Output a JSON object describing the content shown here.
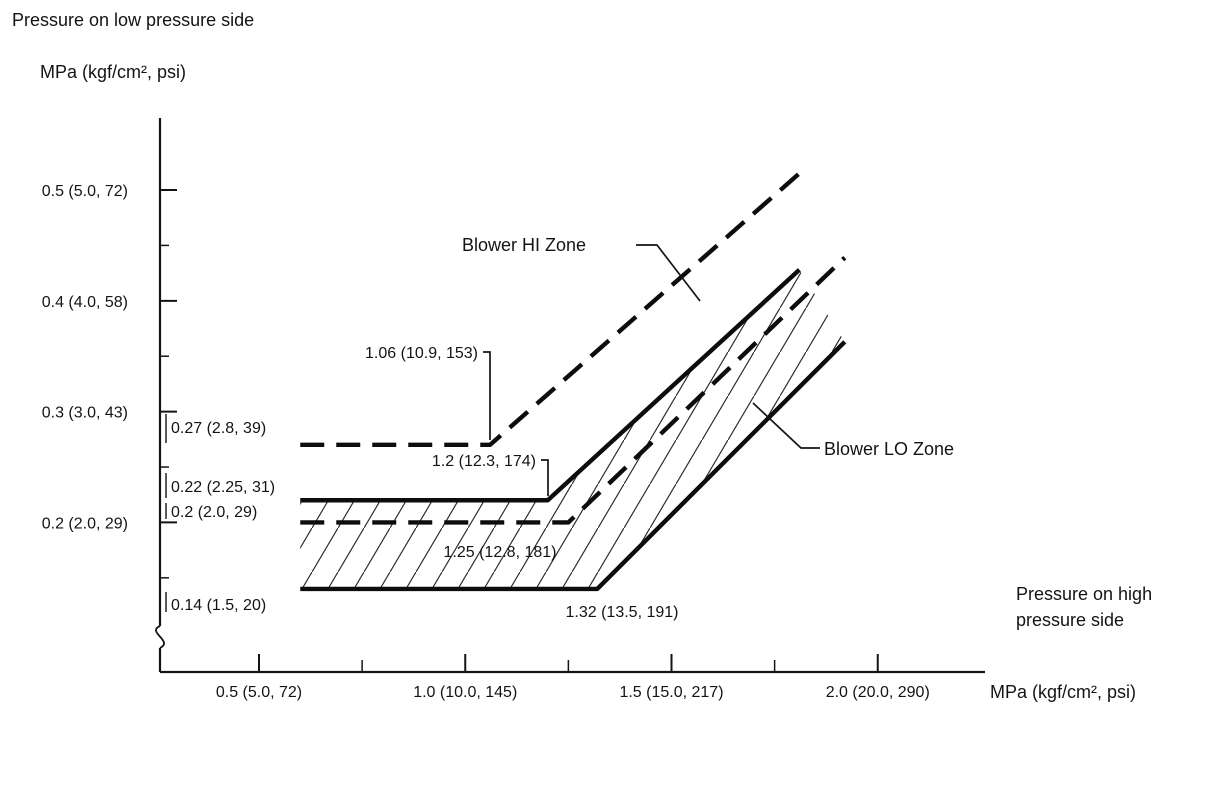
{
  "colors": {
    "line": "#141414",
    "background": "#ffffff"
  },
  "chart_data": {
    "type": "line",
    "title": "Pressure on low pressure side",
    "y_axis": {
      "title": "Pressure on low pressure side",
      "unit": "MPa (kgf/cm², psi)",
      "range": [
        0.065,
        0.565
      ],
      "axis_break": true,
      "ticks": [
        {
          "value": 0.5,
          "label": "0.5 (5.0, 72)"
        },
        {
          "value": 0.4,
          "label": "0.4 (4.0, 58)"
        },
        {
          "value": 0.3,
          "label": "0.3 (3.0, 43)"
        },
        {
          "value": 0.2,
          "label": "0.2 (2.0, 29)"
        }
      ],
      "minor_ticks": [
        0.45,
        0.35,
        0.25,
        0.15
      ]
    },
    "x_axis": {
      "title_lines": [
        "Pressure on high",
        "pressure side"
      ],
      "unit": "MPa (kgf/cm², psi)",
      "range": [
        0.26,
        2.26
      ],
      "ticks": [
        {
          "value": 0.5,
          "label": "0.5 (5.0, 72)"
        },
        {
          "value": 1.0,
          "label": "1.0 (10.0, 145)"
        },
        {
          "value": 1.5,
          "label": "1.5 (15.0, 217)"
        },
        {
          "value": 2.0,
          "label": "2.0 (20.0, 290)"
        }
      ],
      "minor_ticks": [
        0.75,
        1.25,
        1.75
      ]
    },
    "series": [
      {
        "name": "blower-hi-zone-upper-boundary",
        "line": "dashed",
        "points": [
          [
            0.6,
            0.27
          ],
          [
            1.06,
            0.27
          ],
          [
            1.81,
            0.515
          ]
        ]
      },
      {
        "name": "blower-lo-zone-upper-boundary",
        "line": "solid",
        "points": [
          [
            0.6,
            0.22
          ],
          [
            1.2,
            0.22
          ],
          [
            1.81,
            0.428
          ]
        ]
      },
      {
        "name": "blower-hi-zone-lower-boundary",
        "line": "dashed",
        "points": [
          [
            0.6,
            0.2
          ],
          [
            1.25,
            0.2
          ],
          [
            1.92,
            0.439
          ]
        ]
      },
      {
        "name": "blower-lo-zone-lower-boundary",
        "line": "solid",
        "points": [
          [
            0.6,
            0.14
          ],
          [
            1.32,
            0.14
          ],
          [
            1.92,
            0.363
          ]
        ]
      }
    ],
    "hatch_between": [
      "blower-lo-zone-upper-boundary",
      "blower-lo-zone-lower-boundary"
    ],
    "annotations": {
      "hi_zone_label": "Blower HI Zone",
      "lo_zone_label": "Blower LO Zone",
      "corner_hi_upper": "1.06 (10.9, 153)",
      "corner_lo_upper": "1.2 (12.3, 174)",
      "corner_hi_lower": "1.25 (12.8, 181)",
      "corner_lo_lower": "1.32 (13.5, 191)",
      "left": [
        {
          "value": 0.27,
          "label": "0.27 (2.8, 39)"
        },
        {
          "value": 0.22,
          "label": "0.22 (2.25, 31)"
        },
        {
          "value": 0.2,
          "label": "0.2 (2.0, 29)"
        },
        {
          "value": 0.14,
          "label": "0.14 (1.5, 20)"
        }
      ]
    }
  }
}
